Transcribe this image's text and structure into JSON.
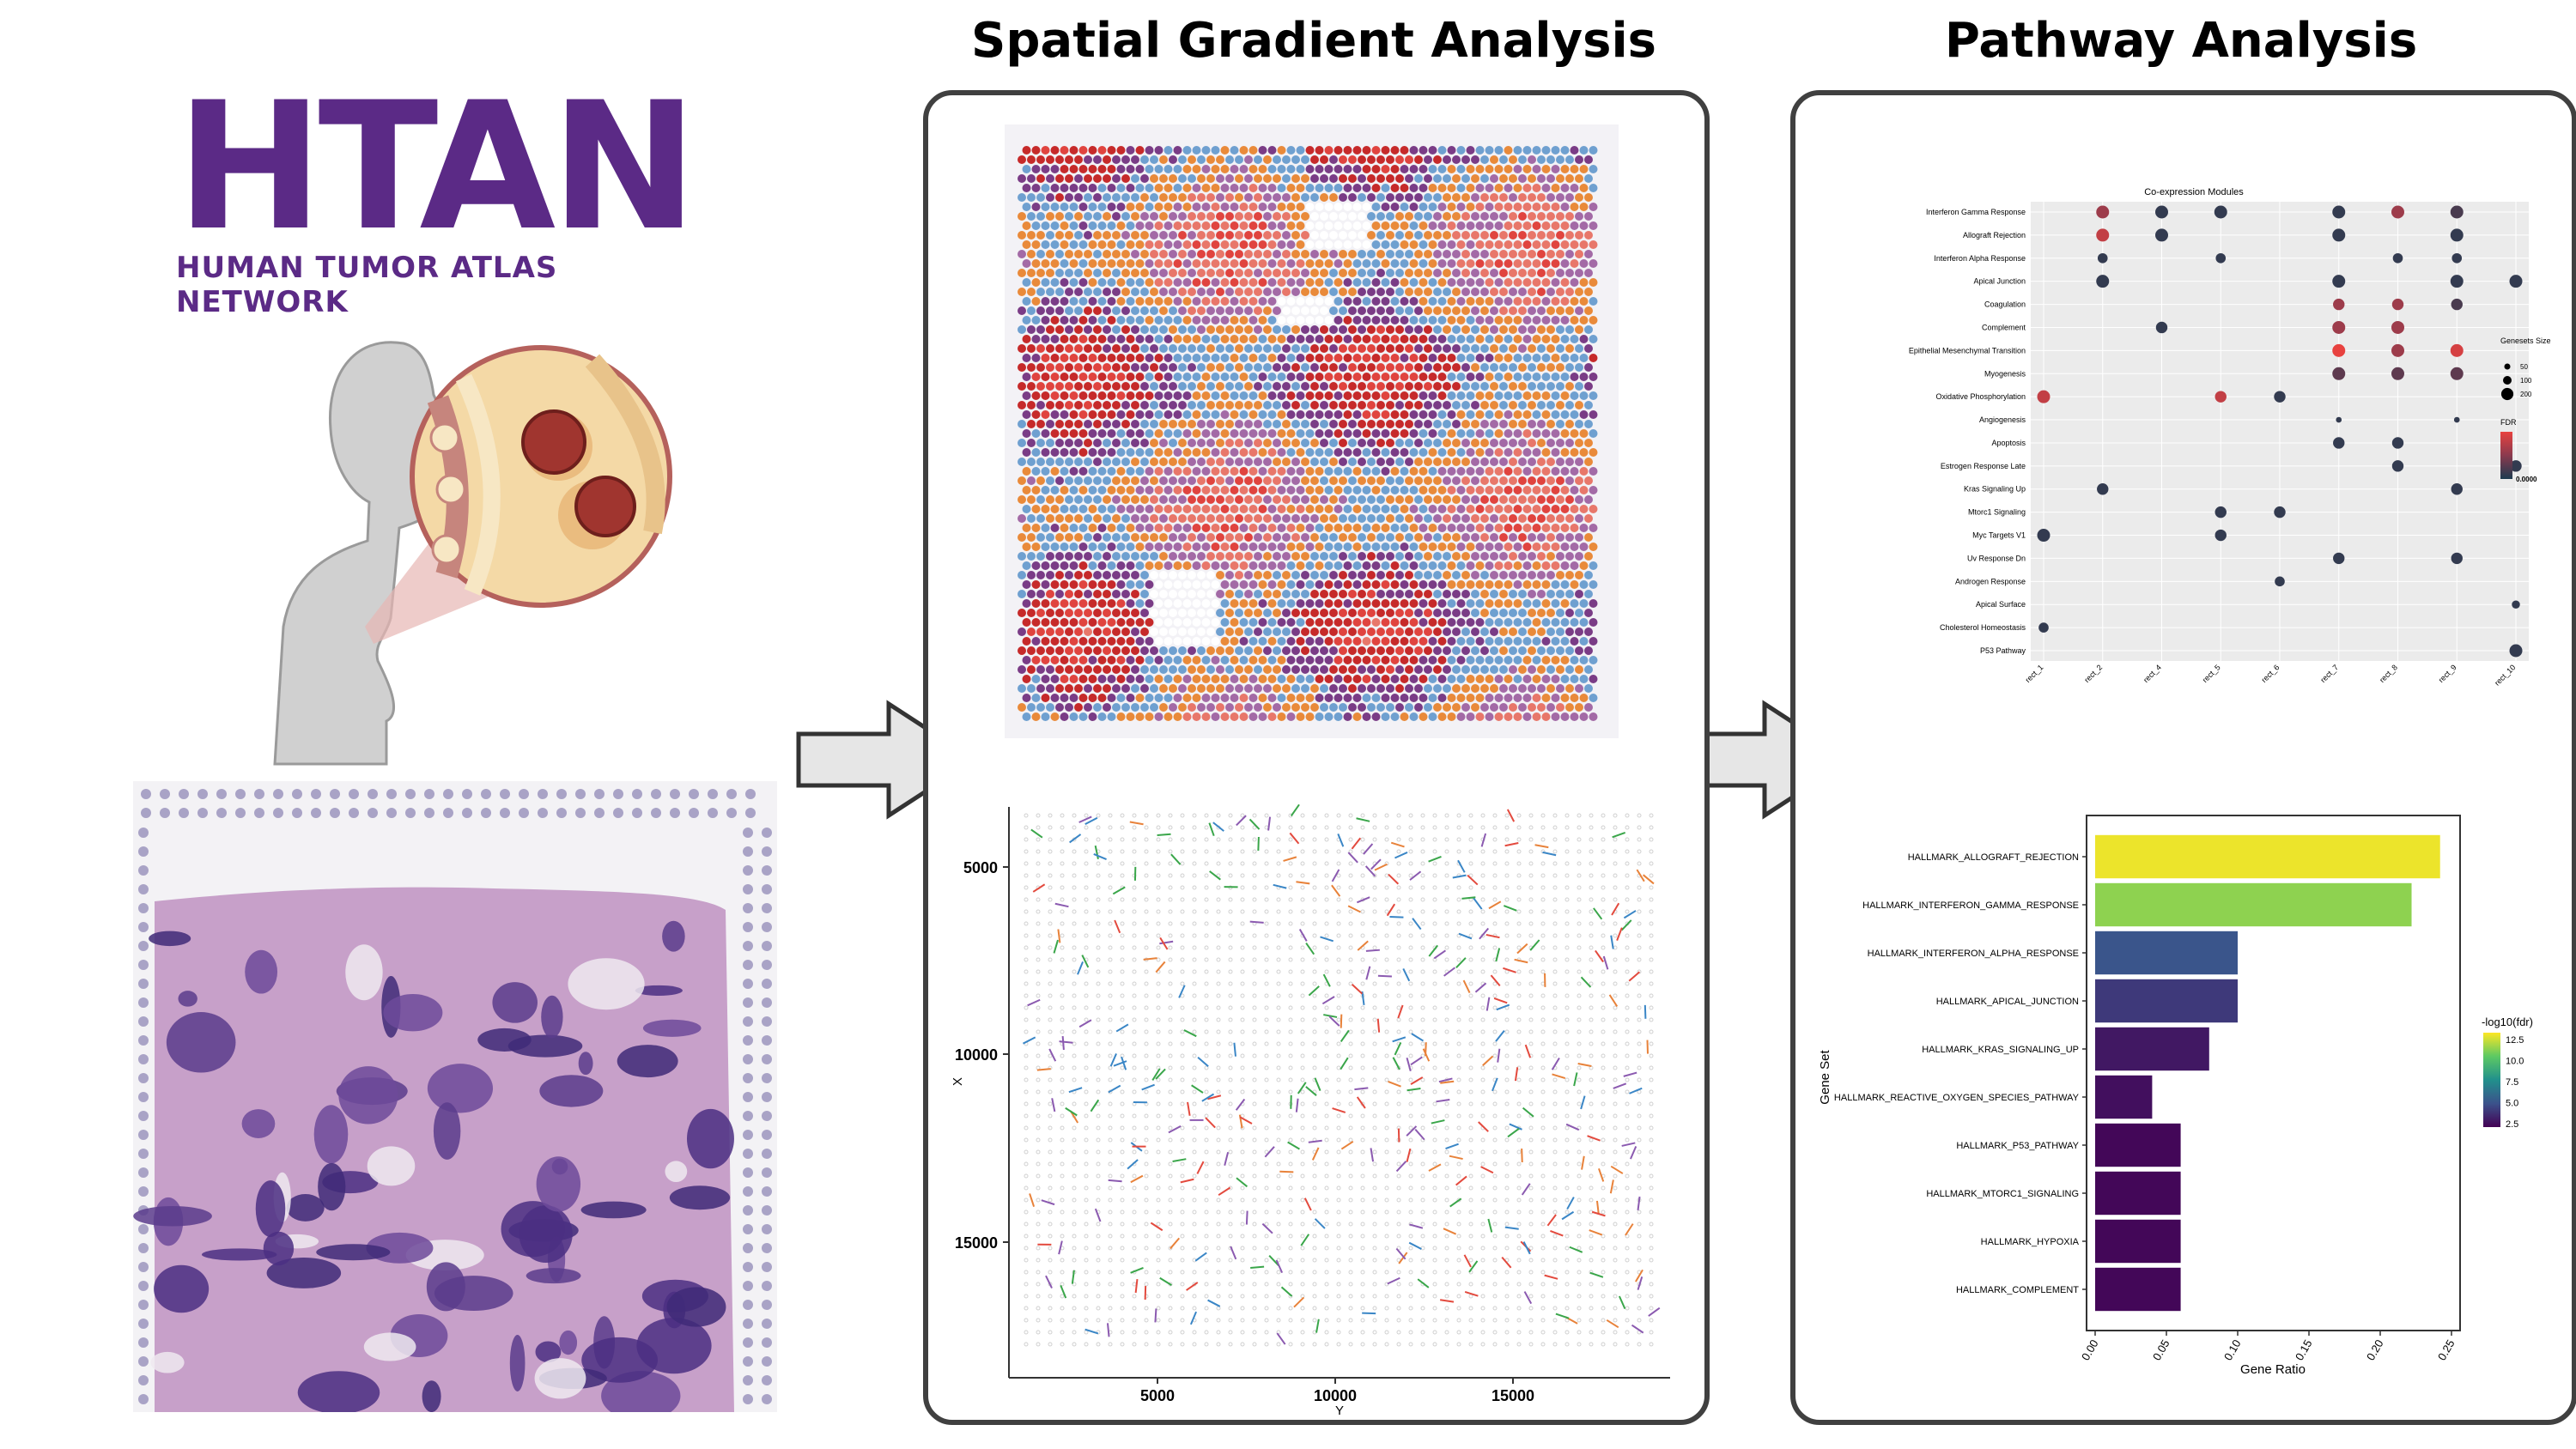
{
  "logo": {
    "big": "HTAN",
    "sub": "HUMAN TUMOR ATLAS NETWORK"
  },
  "stages": {
    "spatial_title": "Spatial Gradient Analysis",
    "pathway_title": "Pathway  Analysis"
  },
  "colors": {
    "htan_purple": "#5b2a86",
    "panel_border": "#404040",
    "arrow_fill": "#e6e6e6"
  },
  "gradient_plot": {
    "x_axis_label": "Y",
    "y_axis_label": "X",
    "x_ticks": [
      "5000",
      "10000",
      "15000"
    ],
    "y_ticks": [
      "5000",
      "10000",
      "15000"
    ]
  },
  "chart_data": [
    {
      "type": "scatter",
      "title": "Co-expression Modules",
      "y_categories": [
        "Interferon Gamma Response",
        "Allograft Rejection",
        "Interferon Alpha Response",
        "Apical Junction",
        "Coagulation",
        "Complement",
        "Epithelial Mesenchymal Transition",
        "Myogenesis",
        "Oxidative Phosphorylation",
        "Angiogenesis",
        "Apoptosis",
        "Estrogen Response Late",
        "Kras Signaling Up",
        "Mtorc1 Signaling",
        "Myc Targets V1",
        "Uv Response Dn",
        "Androgen Response",
        "Apical Surface",
        "Cholesterol Homeostasis",
        "P53 Pathway"
      ],
      "x_categories": [
        "rect_1",
        "rect_2",
        "rect_4",
        "rect_5",
        "rect_6",
        "rect_7",
        "rect_8",
        "rect_9",
        "rect_10"
      ],
      "legend": {
        "size_title": "Genesets Size",
        "size_values": [
          "50",
          "100",
          "200"
        ],
        "color_title": "FDR",
        "color_min_label": "0.0000"
      },
      "points": [
        {
          "x": "rect_2",
          "y": "Interferon Gamma Response",
          "size": 100,
          "fdr": 0.6
        },
        {
          "x": "rect_4",
          "y": "Interferon Gamma Response",
          "size": 100,
          "fdr": 0.1
        },
        {
          "x": "rect_5",
          "y": "Interferon Gamma Response",
          "size": 100,
          "fdr": 0.1
        },
        {
          "x": "rect_7",
          "y": "Interferon Gamma Response",
          "size": 100,
          "fdr": 0.1
        },
        {
          "x": "rect_8",
          "y": "Interferon Gamma Response",
          "size": 100,
          "fdr": 0.6
        },
        {
          "x": "rect_9",
          "y": "Interferon Gamma Response",
          "size": 100,
          "fdr": 0.2
        },
        {
          "x": "rect_2",
          "y": "Allograft Rejection",
          "size": 100,
          "fdr": 0.8
        },
        {
          "x": "rect_4",
          "y": "Allograft Rejection",
          "size": 100,
          "fdr": 0.1
        },
        {
          "x": "rect_7",
          "y": "Allograft Rejection",
          "size": 100,
          "fdr": 0.1
        },
        {
          "x": "rect_9",
          "y": "Allograft Rejection",
          "size": 100,
          "fdr": 0.1
        },
        {
          "x": "rect_2",
          "y": "Interferon Alpha Response",
          "size": 60,
          "fdr": 0.1
        },
        {
          "x": "rect_5",
          "y": "Interferon Alpha Response",
          "size": 60,
          "fdr": 0.1
        },
        {
          "x": "rect_8",
          "y": "Interferon Alpha Response",
          "size": 60,
          "fdr": 0.1
        },
        {
          "x": "rect_9",
          "y": "Interferon Alpha Response",
          "size": 60,
          "fdr": 0.1
        },
        {
          "x": "rect_2",
          "y": "Apical Junction",
          "size": 100,
          "fdr": 0.1
        },
        {
          "x": "rect_7",
          "y": "Apical Junction",
          "size": 100,
          "fdr": 0.1
        },
        {
          "x": "rect_9",
          "y": "Apical Junction",
          "size": 100,
          "fdr": 0.1
        },
        {
          "x": "rect_10",
          "y": "Apical Junction",
          "size": 100,
          "fdr": 0.1
        },
        {
          "x": "rect_7",
          "y": "Coagulation",
          "size": 80,
          "fdr": 0.6
        },
        {
          "x": "rect_8",
          "y": "Coagulation",
          "size": 80,
          "fdr": 0.6
        },
        {
          "x": "rect_9",
          "y": "Coagulation",
          "size": 80,
          "fdr": 0.2
        },
        {
          "x": "rect_4",
          "y": "Complement",
          "size": 80,
          "fdr": 0.1
        },
        {
          "x": "rect_7",
          "y": "Complement",
          "size": 100,
          "fdr": 0.6
        },
        {
          "x": "rect_8",
          "y": "Complement",
          "size": 100,
          "fdr": 0.6
        },
        {
          "x": "rect_7",
          "y": "Epithelial Mesenchymal Transition",
          "size": 100,
          "fdr": 1.0
        },
        {
          "x": "rect_8",
          "y": "Epithelial Mesenchymal Transition",
          "size": 100,
          "fdr": 0.6
        },
        {
          "x": "rect_9",
          "y": "Epithelial Mesenchymal Transition",
          "size": 100,
          "fdr": 0.9
        },
        {
          "x": "rect_7",
          "y": "Myogenesis",
          "size": 100,
          "fdr": 0.3
        },
        {
          "x": "rect_8",
          "y": "Myogenesis",
          "size": 100,
          "fdr": 0.3
        },
        {
          "x": "rect_9",
          "y": "Myogenesis",
          "size": 100,
          "fdr": 0.3
        },
        {
          "x": "rect_1",
          "y": "Oxidative Phosphorylation",
          "size": 100,
          "fdr": 0.8
        },
        {
          "x": "rect_5",
          "y": "Oxidative Phosphorylation",
          "size": 80,
          "fdr": 0.8
        },
        {
          "x": "rect_6",
          "y": "Oxidative Phosphorylation",
          "size": 80,
          "fdr": 0.1
        },
        {
          "x": "rect_7",
          "y": "Angiogenesis",
          "size": 20,
          "fdr": 0.1
        },
        {
          "x": "rect_9",
          "y": "Angiogenesis",
          "size": 20,
          "fdr": 0.1
        },
        {
          "x": "rect_7",
          "y": "Apoptosis",
          "size": 80,
          "fdr": 0.1
        },
        {
          "x": "rect_8",
          "y": "Apoptosis",
          "size": 80,
          "fdr": 0.1
        },
        {
          "x": "rect_8",
          "y": "Estrogen Response Late",
          "size": 80,
          "fdr": 0.1
        },
        {
          "x": "rect_10",
          "y": "Estrogen Response Late",
          "size": 80,
          "fdr": 0.1
        },
        {
          "x": "rect_2",
          "y": "Kras Signaling Up",
          "size": 80,
          "fdr": 0.1
        },
        {
          "x": "rect_9",
          "y": "Kras Signaling Up",
          "size": 80,
          "fdr": 0.1
        },
        {
          "x": "rect_5",
          "y": "Mtorc1 Signaling",
          "size": 80,
          "fdr": 0.1
        },
        {
          "x": "rect_6",
          "y": "Mtorc1 Signaling",
          "size": 80,
          "fdr": 0.1
        },
        {
          "x": "rect_1",
          "y": "Myc Targets V1",
          "size": 100,
          "fdr": 0.1
        },
        {
          "x": "rect_5",
          "y": "Myc Targets V1",
          "size": 80,
          "fdr": 0.1
        },
        {
          "x": "rect_7",
          "y": "Uv Response Dn",
          "size": 80,
          "fdr": 0.1
        },
        {
          "x": "rect_9",
          "y": "Uv Response Dn",
          "size": 80,
          "fdr": 0.1
        },
        {
          "x": "rect_6",
          "y": "Androgen Response",
          "size": 60,
          "fdr": 0.1
        },
        {
          "x": "rect_10",
          "y": "Apical Surface",
          "size": 40,
          "fdr": 0.1
        },
        {
          "x": "rect_1",
          "y": "Cholesterol Homeostasis",
          "size": 60,
          "fdr": 0.1
        },
        {
          "x": "rect_10",
          "y": "P53 Pathway",
          "size": 100,
          "fdr": 0.1
        }
      ]
    },
    {
      "type": "bar",
      "orientation": "horizontal",
      "categories": [
        "HALLMARK_ALLOGRAFT_REJECTION",
        "HALLMARK_INTERFERON_GAMMA_RESPONSE",
        "HALLMARK_INTERFERON_ALPHA_RESPONSE",
        "HALLMARK_APICAL_JUNCTION",
        "HALLMARK_KRAS_SIGNALING_UP",
        "HALLMARK_REACTIVE_OXYGEN_SPECIES_PATHWAY",
        "HALLMARK_P53_PATHWAY",
        "HALLMARK_MTORC1_SIGNALING",
        "HALLMARK_HYPOXIA",
        "HALLMARK_COMPLEMENT"
      ],
      "values": [
        0.242,
        0.222,
        0.1,
        0.1,
        0.08,
        0.04,
        0.06,
        0.06,
        0.06,
        0.06
      ],
      "color_values": [
        13.2,
        11.5,
        5.0,
        4.0,
        2.8,
        2.5,
        2.2,
        2.2,
        2.2,
        2.2
      ],
      "xlabel": "Gene Ratio",
      "ylabel": "Gene Set",
      "xlim": [
        0,
        0.25
      ],
      "x_ticks": [
        "0.00",
        "0.05",
        "0.10",
        "0.15",
        "0.20",
        "0.25"
      ],
      "legend": {
        "title": "-log10(fdr)",
        "ticks": [
          "12.5",
          "10.0",
          "7.5",
          "5.0",
          "2.5"
        ]
      }
    }
  ]
}
